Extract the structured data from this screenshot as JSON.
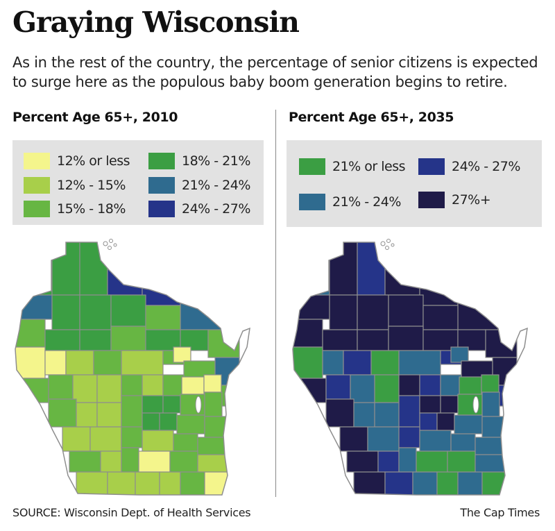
{
  "title": "Graying Wisconsin",
  "subtitle": "As in the rest of the country, the percentage of senior citizens is expected to surge here as the populous baby boom generation begins to retire.",
  "maps": [
    {
      "title": "Percent Age 65+, 2010",
      "legend": [
        {
          "label": "12% or less",
          "color": "#f4f58c"
        },
        {
          "label": "12% - 15%",
          "color": "#a8cf4a"
        },
        {
          "label": "15% - 18%",
          "color": "#67b643"
        },
        {
          "label": "18% - 21%",
          "color": "#3b9e43"
        },
        {
          "label": "21% - 24%",
          "color": "#2f6b8f"
        },
        {
          "label": "24% - 27%",
          "color": "#253489"
        }
      ]
    },
    {
      "title": "Percent Age 65+, 2035",
      "legend": [
        {
          "label": "21% or less",
          "color": "#3b9e43"
        },
        {
          "label": "21% - 24%",
          "color": "#2f6b8f"
        },
        {
          "label": "24% - 27%",
          "color": "#253489"
        },
        {
          "label": "27%+",
          "color": "#1f1b48"
        }
      ]
    }
  ],
  "source": "SOURCE: Wisconsin Dept. of Health Services",
  "credit": "The Cap Times"
}
